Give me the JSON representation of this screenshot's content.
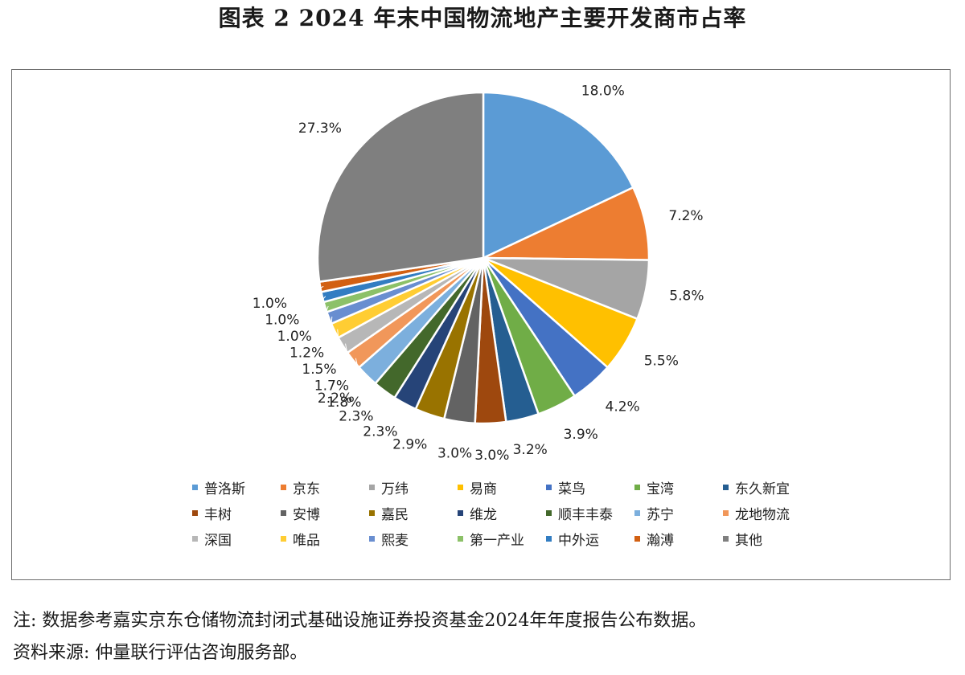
{
  "figure_title": "图表 2  2024 年末中国物流地产主要开发商市占率",
  "chart_data": {
    "type": "pie",
    "title": "",
    "start_angle_deg": 0,
    "direction": "clockwise",
    "legend_position": "bottom",
    "slices": [
      {
        "label": "普洛斯",
        "value": 18.0,
        "value_label": "18.0%",
        "color": "#5b9bd5"
      },
      {
        "label": "京东",
        "value": 7.2,
        "value_label": "7.2%",
        "color": "#ed7d31"
      },
      {
        "label": "万纬",
        "value": 5.8,
        "value_label": "5.8%",
        "color": "#a5a5a5"
      },
      {
        "label": "易商",
        "value": 5.5,
        "value_label": "5.5%",
        "color": "#ffc000"
      },
      {
        "label": "菜鸟",
        "value": 4.2,
        "value_label": "4.2%",
        "color": "#4472c4"
      },
      {
        "label": "宝湾",
        "value": 3.9,
        "value_label": "3.9%",
        "color": "#70ad47"
      },
      {
        "label": "东久新宜",
        "value": 3.2,
        "value_label": "3.2%",
        "color": "#255e91"
      },
      {
        "label": "丰树",
        "value": 3.0,
        "value_label": "3.0%",
        "color": "#9e480e"
      },
      {
        "label": "安博",
        "value": 3.0,
        "value_label": "3.0%",
        "color": "#636363"
      },
      {
        "label": "嘉民",
        "value": 2.9,
        "value_label": "2.9%",
        "color": "#997300"
      },
      {
        "label": "维龙",
        "value": 2.3,
        "value_label": "2.3%",
        "color": "#264478"
      },
      {
        "label": "顺丰丰泰",
        "value": 2.3,
        "value_label": "2.3%",
        "color": "#43682b"
      },
      {
        "label": "苏宁",
        "value": 2.2,
        "value_label": "2.2%",
        "color": "#7cafdd"
      },
      {
        "label": "龙地物流",
        "value": 1.8,
        "value_label": "1.8%",
        "color": "#f1975a"
      },
      {
        "label": "深国",
        "value": 1.7,
        "value_label": "1.7%",
        "color": "#b7b7b7"
      },
      {
        "label": "唯品",
        "value": 1.5,
        "value_label": "1.5%",
        "color": "#ffcd33"
      },
      {
        "label": "熙麦",
        "value": 1.2,
        "value_label": "1.2%",
        "color": "#698ed0"
      },
      {
        "label": "第一产业",
        "value": 1.0,
        "value_label": "1.0%",
        "color": "#8cc168"
      },
      {
        "label": "中外运",
        "value": 1.0,
        "value_label": "1.0%",
        "color": "#327dc2"
      },
      {
        "label": "瀚溥",
        "value": 1.0,
        "value_label": "1.0%",
        "color": "#d26012"
      },
      {
        "label": "其他",
        "value": 27.3,
        "value_label": "27.3%",
        "color": "#7f7f7f"
      }
    ]
  },
  "notes": {
    "note": "注: 数据参考嘉实京东仓储物流封闭式基础设施证券投资基金2024年年度报告公布数据。",
    "source": "资料来源: 仲量联行评估咨询服务部。"
  }
}
